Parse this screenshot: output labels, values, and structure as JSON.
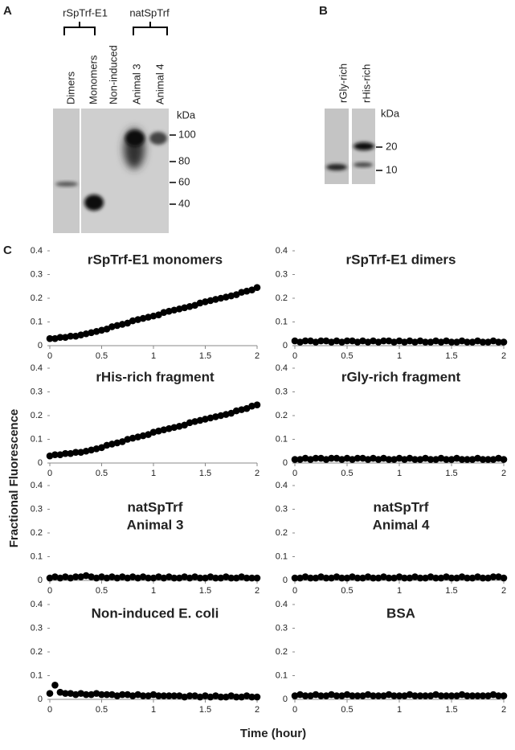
{
  "figure": {
    "panel_labels": [
      "A",
      "B",
      "C"
    ],
    "y_label": "Fractional Fluorescence",
    "x_label": "Time (hour)"
  },
  "blot_a": {
    "group_labels": [
      "rSpTrf-E1",
      "natSpTrf"
    ],
    "lanes": [
      "Dimers",
      "Monomers",
      "Non-induced",
      "Animal 3",
      "Animal 4"
    ],
    "unit": "kDa",
    "markers": [
      100,
      80,
      60,
      40
    ]
  },
  "blot_b": {
    "lanes": [
      "rGly-rich",
      "rHis-rich"
    ],
    "unit": "kDa",
    "markers": [
      20,
      10
    ]
  },
  "chart_data": [
    {
      "type": "scatter",
      "title": "rSpTrf-E1 monomers",
      "color": "#000000",
      "x": [
        0,
        0.05,
        0.1,
        0.15,
        0.2,
        0.25,
        0.3,
        0.35,
        0.4,
        0.45,
        0.5,
        0.55,
        0.6,
        0.65,
        0.7,
        0.75,
        0.8,
        0.85,
        0.9,
        0.95,
        1,
        1.05,
        1.1,
        1.15,
        1.2,
        1.25,
        1.3,
        1.35,
        1.4,
        1.45,
        1.5,
        1.55,
        1.6,
        1.65,
        1.7,
        1.75,
        1.8,
        1.85,
        1.9,
        1.95,
        2
      ],
      "values": [
        0.03,
        0.03,
        0.035,
        0.035,
        0.04,
        0.04,
        0.045,
        0.05,
        0.055,
        0.06,
        0.065,
        0.07,
        0.08,
        0.085,
        0.09,
        0.095,
        0.105,
        0.11,
        0.115,
        0.12,
        0.125,
        0.13,
        0.14,
        0.145,
        0.15,
        0.155,
        0.16,
        0.165,
        0.17,
        0.18,
        0.185,
        0.19,
        0.195,
        0.2,
        0.205,
        0.21,
        0.215,
        0.225,
        0.23,
        0.235,
        0.245
      ],
      "xlim": [
        0,
        2
      ],
      "xticks": [
        0,
        0.5,
        1,
        1.5,
        2
      ],
      "ylim": [
        0,
        0.4
      ],
      "yticks": [
        0,
        0.1,
        0.2,
        0.3,
        0.4
      ]
    },
    {
      "type": "scatter",
      "title": "rSpTrf-E1 dimers",
      "color": "#000000",
      "x": [
        0,
        0.05,
        0.1,
        0.15,
        0.2,
        0.25,
        0.3,
        0.35,
        0.4,
        0.45,
        0.5,
        0.55,
        0.6,
        0.65,
        0.7,
        0.75,
        0.8,
        0.85,
        0.9,
        0.95,
        1,
        1.05,
        1.1,
        1.15,
        1.2,
        1.25,
        1.3,
        1.35,
        1.4,
        1.45,
        1.5,
        1.55,
        1.6,
        1.65,
        1.7,
        1.75,
        1.8,
        1.85,
        1.9,
        1.95,
        2
      ],
      "values": [
        0.02,
        0.015,
        0.02,
        0.02,
        0.015,
        0.02,
        0.02,
        0.015,
        0.02,
        0.015,
        0.02,
        0.02,
        0.015,
        0.02,
        0.015,
        0.02,
        0.015,
        0.02,
        0.02,
        0.015,
        0.02,
        0.015,
        0.02,
        0.015,
        0.02,
        0.015,
        0.015,
        0.02,
        0.015,
        0.02,
        0.015,
        0.015,
        0.02,
        0.015,
        0.015,
        0.02,
        0.015,
        0.015,
        0.02,
        0.015,
        0.015
      ],
      "xlim": [
        0,
        2
      ],
      "xticks": [
        0,
        0.5,
        1,
        1.5,
        2
      ],
      "ylim": [
        0,
        0.4
      ],
      "yticks": [
        0,
        0.1,
        0.2,
        0.3,
        0.4
      ]
    },
    {
      "type": "scatter",
      "title": "rHis-rich fragment",
      "color": "#000000",
      "x": [
        0,
        0.05,
        0.1,
        0.15,
        0.2,
        0.25,
        0.3,
        0.35,
        0.4,
        0.45,
        0.5,
        0.55,
        0.6,
        0.65,
        0.7,
        0.75,
        0.8,
        0.85,
        0.9,
        0.95,
        1,
        1.05,
        1.1,
        1.15,
        1.2,
        1.25,
        1.3,
        1.35,
        1.4,
        1.45,
        1.5,
        1.55,
        1.6,
        1.65,
        1.7,
        1.75,
        1.8,
        1.85,
        1.9,
        1.95,
        2
      ],
      "values": [
        0.03,
        0.035,
        0.035,
        0.04,
        0.04,
        0.045,
        0.045,
        0.05,
        0.055,
        0.06,
        0.065,
        0.075,
        0.08,
        0.085,
        0.09,
        0.1,
        0.105,
        0.11,
        0.115,
        0.12,
        0.13,
        0.135,
        0.14,
        0.145,
        0.15,
        0.155,
        0.16,
        0.17,
        0.175,
        0.18,
        0.185,
        0.19,
        0.195,
        0.2,
        0.205,
        0.21,
        0.22,
        0.225,
        0.23,
        0.24,
        0.245
      ],
      "xlim": [
        0,
        2
      ],
      "xticks": [
        0,
        0.5,
        1,
        1.5,
        2
      ],
      "ylim": [
        0,
        0.4
      ],
      "yticks": [
        0,
        0.1,
        0.2,
        0.3,
        0.4
      ]
    },
    {
      "type": "scatter",
      "title": "rGly-rich fragment",
      "color": "#000000",
      "x": [
        0,
        0.05,
        0.1,
        0.15,
        0.2,
        0.25,
        0.3,
        0.35,
        0.4,
        0.45,
        0.5,
        0.55,
        0.6,
        0.65,
        0.7,
        0.75,
        0.8,
        0.85,
        0.9,
        0.95,
        1,
        1.05,
        1.1,
        1.15,
        1.2,
        1.25,
        1.3,
        1.35,
        1.4,
        1.45,
        1.5,
        1.55,
        1.6,
        1.65,
        1.7,
        1.75,
        1.8,
        1.85,
        1.9,
        1.95,
        2
      ],
      "values": [
        0.015,
        0.015,
        0.02,
        0.015,
        0.02,
        0.02,
        0.015,
        0.02,
        0.02,
        0.015,
        0.02,
        0.015,
        0.02,
        0.02,
        0.015,
        0.02,
        0.015,
        0.02,
        0.015,
        0.015,
        0.02,
        0.015,
        0.02,
        0.015,
        0.015,
        0.02,
        0.015,
        0.015,
        0.02,
        0.015,
        0.015,
        0.02,
        0.015,
        0.015,
        0.015,
        0.02,
        0.015,
        0.015,
        0.015,
        0.02,
        0.015
      ],
      "xlim": [
        0,
        2
      ],
      "xticks": [
        0,
        0.5,
        1,
        1.5,
        2
      ],
      "ylim": [
        0,
        0.4
      ],
      "yticks": [
        0,
        0.1,
        0.2,
        0.3,
        0.4
      ]
    },
    {
      "type": "scatter",
      "title": [
        "natSpTrf",
        "Animal 3"
      ],
      "color": "#000000",
      "x": [
        0,
        0.05,
        0.1,
        0.15,
        0.2,
        0.25,
        0.3,
        0.35,
        0.4,
        0.45,
        0.5,
        0.55,
        0.6,
        0.65,
        0.7,
        0.75,
        0.8,
        0.85,
        0.9,
        0.95,
        1,
        1.05,
        1.1,
        1.15,
        1.2,
        1.25,
        1.3,
        1.35,
        1.4,
        1.45,
        1.5,
        1.55,
        1.6,
        1.65,
        1.7,
        1.75,
        1.8,
        1.85,
        1.9,
        1.95,
        2
      ],
      "values": [
        0.01,
        0.015,
        0.01,
        0.015,
        0.01,
        0.015,
        0.015,
        0.02,
        0.015,
        0.01,
        0.015,
        0.01,
        0.015,
        0.01,
        0.015,
        0.01,
        0.015,
        0.01,
        0.015,
        0.01,
        0.01,
        0.015,
        0.01,
        0.015,
        0.01,
        0.01,
        0.015,
        0.01,
        0.015,
        0.01,
        0.01,
        0.015,
        0.01,
        0.01,
        0.015,
        0.01,
        0.01,
        0.015,
        0.01,
        0.01,
        0.01
      ],
      "xlim": [
        0,
        2
      ],
      "xticks": [
        0,
        0.5,
        1,
        1.5,
        2
      ],
      "ylim": [
        0,
        0.4
      ],
      "yticks": [
        0,
        0.1,
        0.2,
        0.3,
        0.4
      ]
    },
    {
      "type": "scatter",
      "title": [
        "natSpTrf",
        "Animal 4"
      ],
      "color": "#000000",
      "x": [
        0,
        0.05,
        0.1,
        0.15,
        0.2,
        0.25,
        0.3,
        0.35,
        0.4,
        0.45,
        0.5,
        0.55,
        0.6,
        0.65,
        0.7,
        0.75,
        0.8,
        0.85,
        0.9,
        0.95,
        1,
        1.05,
        1.1,
        1.15,
        1.2,
        1.25,
        1.3,
        1.35,
        1.4,
        1.45,
        1.5,
        1.55,
        1.6,
        1.65,
        1.7,
        1.75,
        1.8,
        1.85,
        1.9,
        1.95,
        2
      ],
      "values": [
        0.01,
        0.01,
        0.015,
        0.01,
        0.01,
        0.015,
        0.01,
        0.01,
        0.015,
        0.01,
        0.01,
        0.015,
        0.01,
        0.01,
        0.015,
        0.01,
        0.01,
        0.015,
        0.01,
        0.01,
        0.015,
        0.01,
        0.01,
        0.015,
        0.01,
        0.01,
        0.015,
        0.01,
        0.01,
        0.015,
        0.01,
        0.01,
        0.015,
        0.01,
        0.01,
        0.015,
        0.01,
        0.01,
        0.015,
        0.015,
        0.01
      ],
      "xlim": [
        0,
        2
      ],
      "xticks": [
        0,
        0.5,
        1,
        1.5,
        2
      ],
      "ylim": [
        0,
        0.4
      ],
      "yticks": [
        0,
        0.1,
        0.2,
        0.3,
        0.4
      ]
    },
    {
      "type": "scatter",
      "title": "Non-induced E. coli",
      "color": "#000000",
      "x": [
        0,
        0.05,
        0.1,
        0.15,
        0.2,
        0.25,
        0.3,
        0.35,
        0.4,
        0.45,
        0.5,
        0.55,
        0.6,
        0.65,
        0.7,
        0.75,
        0.8,
        0.85,
        0.9,
        0.95,
        1,
        1.05,
        1.1,
        1.15,
        1.2,
        1.25,
        1.3,
        1.35,
        1.4,
        1.45,
        1.5,
        1.55,
        1.6,
        1.65,
        1.7,
        1.75,
        1.8,
        1.85,
        1.9,
        1.95,
        2
      ],
      "values": [
        0.025,
        0.06,
        0.03,
        0.025,
        0.025,
        0.02,
        0.025,
        0.02,
        0.02,
        0.025,
        0.02,
        0.02,
        0.02,
        0.015,
        0.02,
        0.02,
        0.015,
        0.02,
        0.015,
        0.015,
        0.02,
        0.015,
        0.015,
        0.015,
        0.015,
        0.015,
        0.01,
        0.015,
        0.015,
        0.01,
        0.015,
        0.01,
        0.015,
        0.01,
        0.01,
        0.015,
        0.01,
        0.01,
        0.015,
        0.01,
        0.01
      ],
      "xlim": [
        0,
        2
      ],
      "xticks": [
        0,
        0.5,
        1,
        1.5,
        2
      ],
      "ylim": [
        0,
        0.4
      ],
      "yticks": [
        0,
        0.1,
        0.2,
        0.3,
        0.4
      ]
    },
    {
      "type": "scatter",
      "title": "BSA",
      "color": "#000000",
      "x": [
        0,
        0.05,
        0.1,
        0.15,
        0.2,
        0.25,
        0.3,
        0.35,
        0.4,
        0.45,
        0.5,
        0.55,
        0.6,
        0.65,
        0.7,
        0.75,
        0.8,
        0.85,
        0.9,
        0.95,
        1,
        1.05,
        1.1,
        1.15,
        1.2,
        1.25,
        1.3,
        1.35,
        1.4,
        1.45,
        1.5,
        1.55,
        1.6,
        1.65,
        1.7,
        1.75,
        1.8,
        1.85,
        1.9,
        1.95,
        2
      ],
      "values": [
        0.015,
        0.02,
        0.015,
        0.015,
        0.02,
        0.015,
        0.015,
        0.02,
        0.015,
        0.015,
        0.02,
        0.015,
        0.015,
        0.015,
        0.02,
        0.015,
        0.015,
        0.015,
        0.02,
        0.015,
        0.015,
        0.015,
        0.02,
        0.015,
        0.015,
        0.015,
        0.015,
        0.02,
        0.015,
        0.015,
        0.015,
        0.015,
        0.02,
        0.015,
        0.015,
        0.015,
        0.015,
        0.015,
        0.02,
        0.015,
        0.015
      ],
      "xlim": [
        0,
        2
      ],
      "xticks": [
        0,
        0.5,
        1,
        1.5,
        2
      ],
      "ylim": [
        0,
        0.4
      ],
      "yticks": [
        0,
        0.1,
        0.2,
        0.3,
        0.4
      ]
    }
  ]
}
